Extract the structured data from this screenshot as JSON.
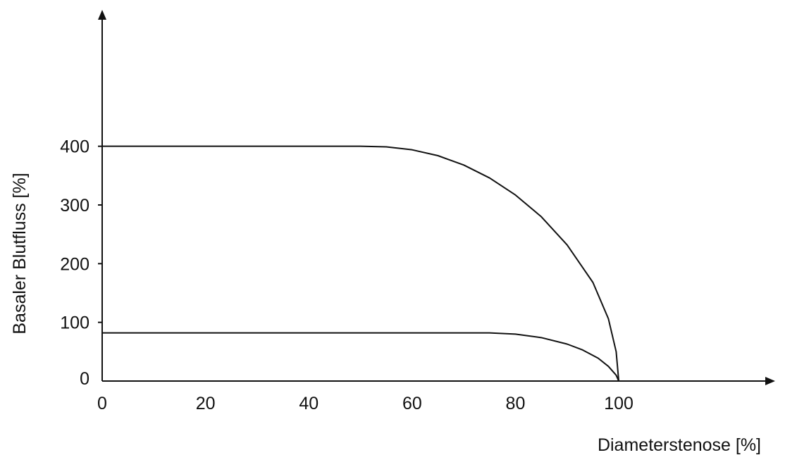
{
  "chart_data": {
    "type": "line",
    "title": "",
    "xlabel": "Diameterstenose [%]",
    "ylabel": "Basaler Blutfluss [%]",
    "x_ticks": [
      "0",
      "20",
      "40",
      "60",
      "80",
      "100"
    ],
    "y_ticks": [
      "0",
      "100",
      "200",
      "300",
      "400"
    ],
    "xlim": [
      0,
      130
    ],
    "ylim": [
      0,
      630
    ],
    "grid": false,
    "legend": "none",
    "series": [
      {
        "x": [
          0,
          50,
          55,
          60,
          65,
          70,
          75,
          80,
          85,
          90,
          95,
          98,
          99.5,
          100
        ],
        "y": [
          400,
          400,
          399,
          394,
          384,
          368,
          346,
          317,
          280,
          232,
          168,
          106,
          50,
          0
        ]
      },
      {
        "x": [
          0,
          50,
          75,
          80,
          85,
          90,
          93,
          96,
          98,
          99.5,
          100
        ],
        "y": [
          82,
          82,
          82,
          80,
          74,
          63,
          53,
          39,
          25,
          10,
          0
        ]
      }
    ],
    "colors": {
      "line": "#111111",
      "axis": "#111111"
    }
  }
}
